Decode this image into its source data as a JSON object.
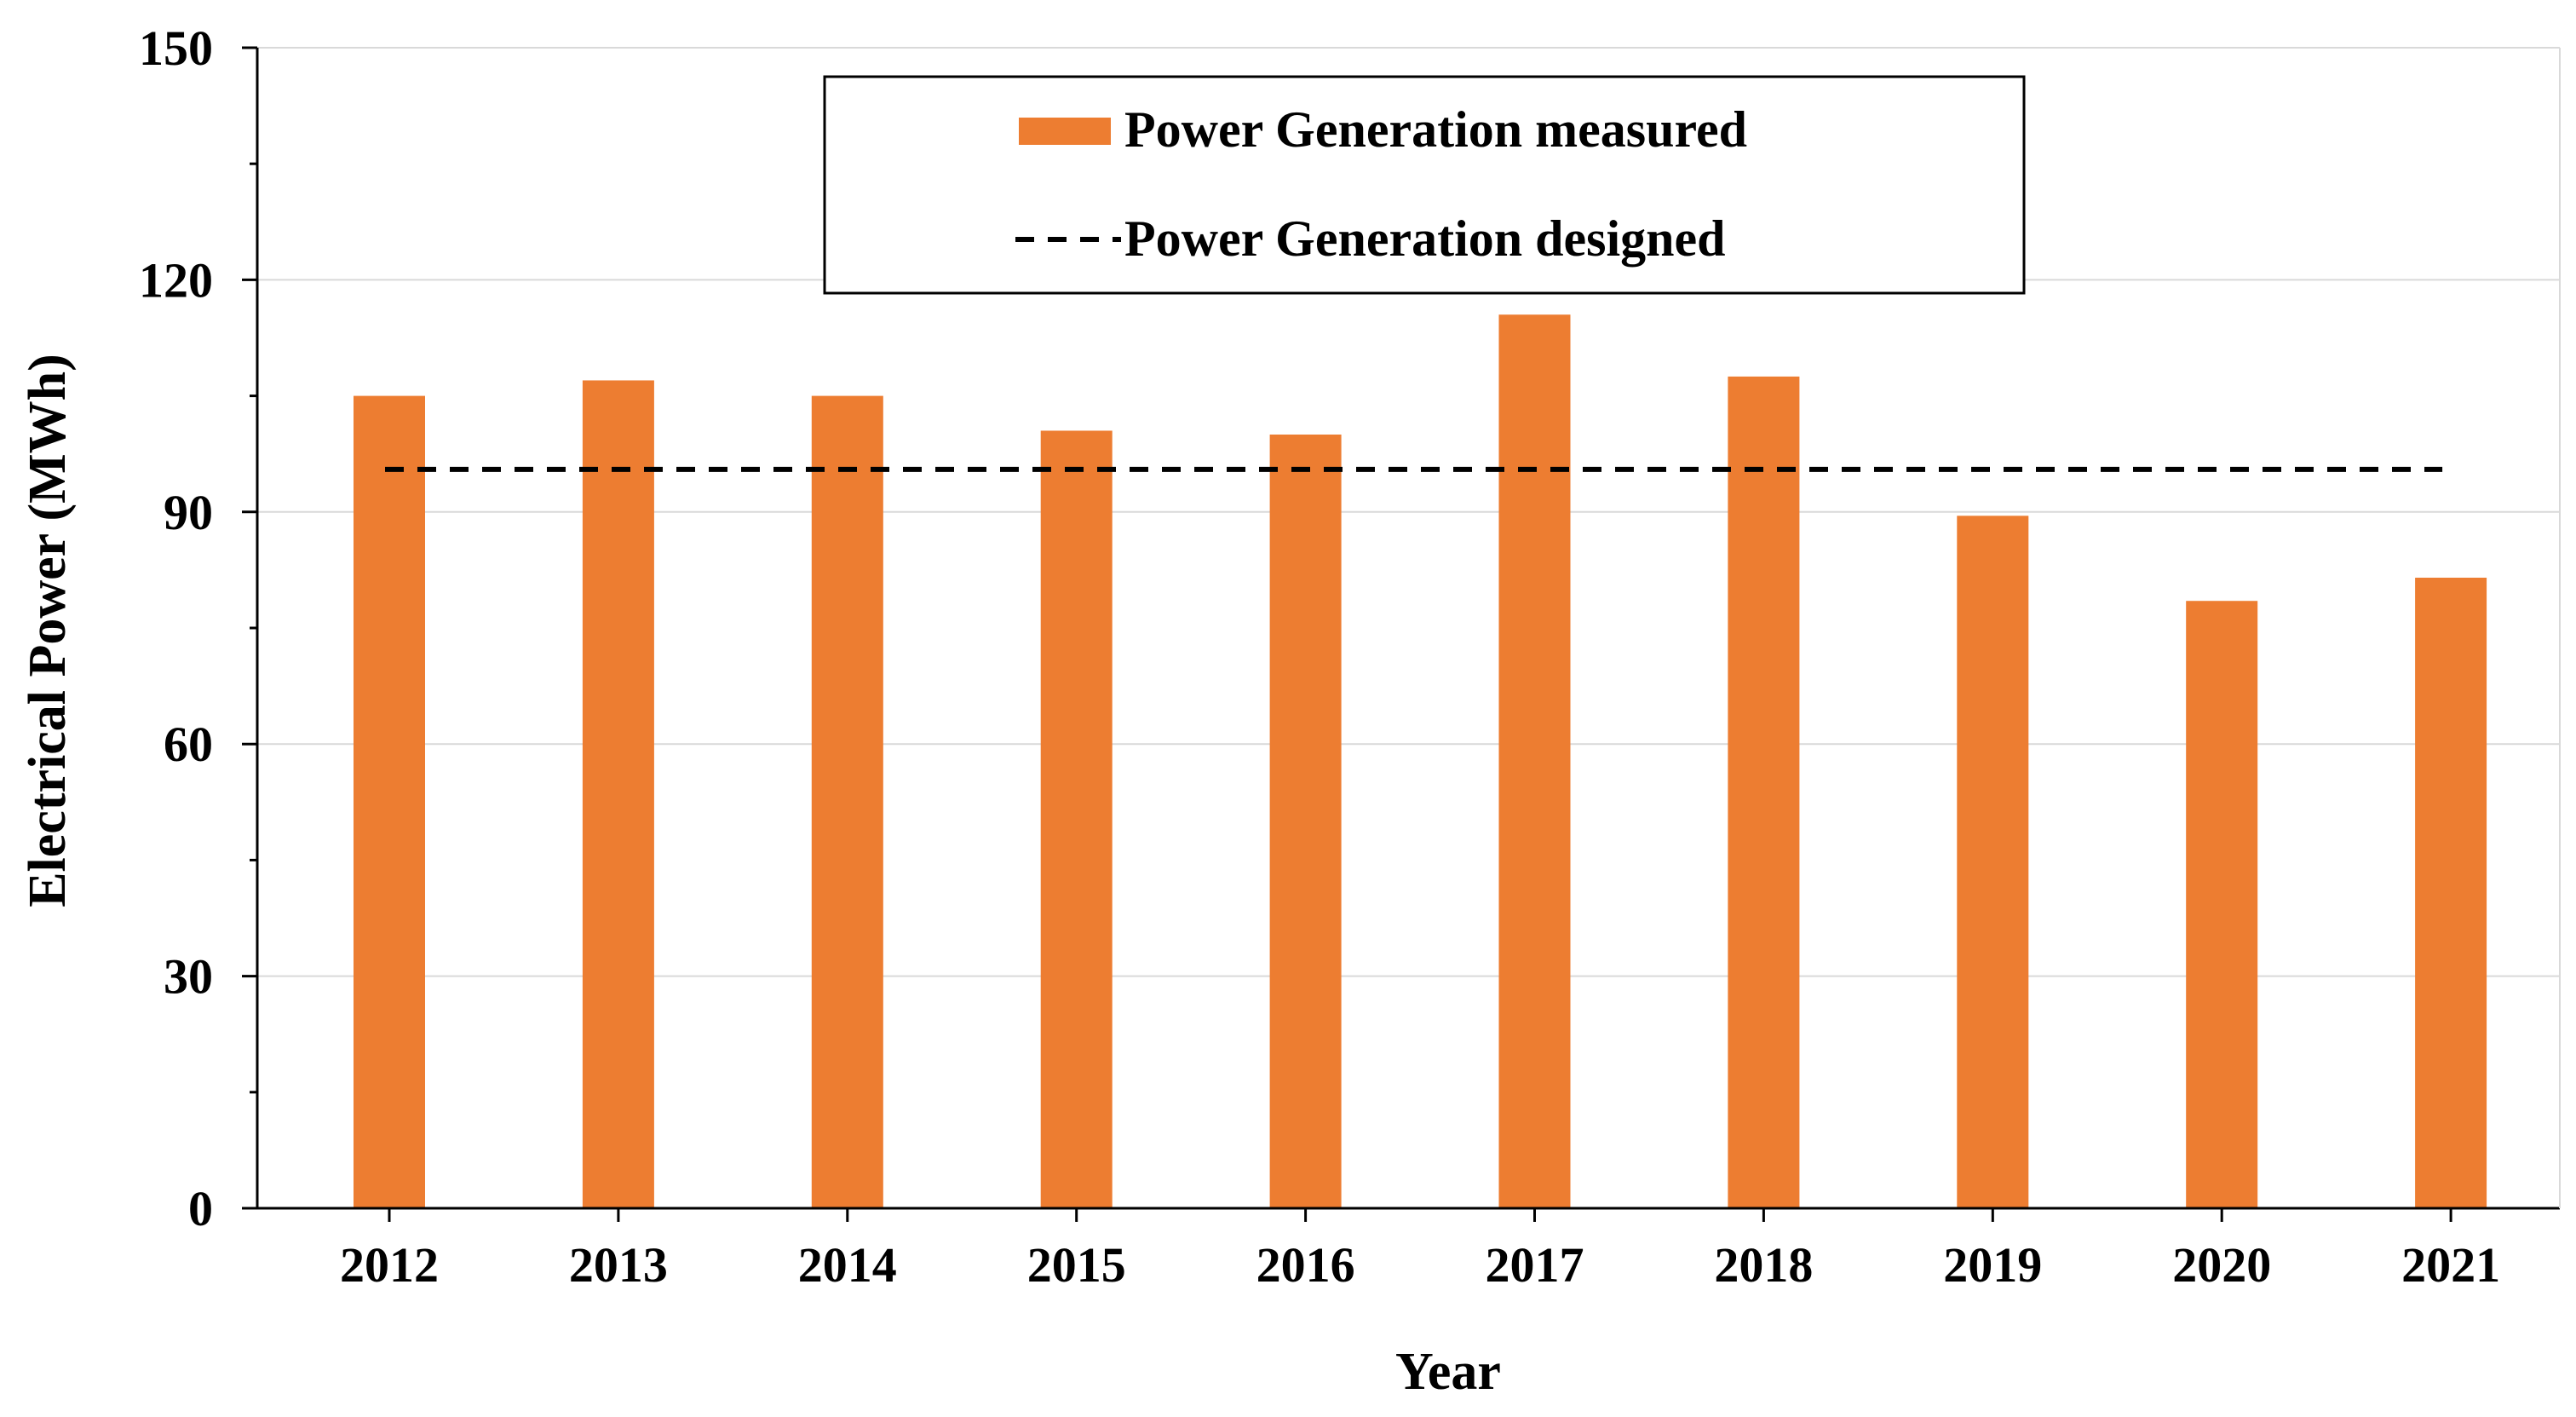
{
  "chart_data": {
    "type": "bar",
    "title": "",
    "xlabel": "Year",
    "ylabel": "Electrical Power (MWh)",
    "categories": [
      "2012",
      "2013",
      "2014",
      "2015",
      "2016",
      "2017",
      "2018",
      "2019",
      "2020",
      "2021"
    ],
    "series": [
      {
        "name": "Power Generation measured",
        "kind": "bar",
        "values": [
          105,
          107,
          105,
          100.5,
          100,
          115.5,
          107.5,
          89.5,
          78.5,
          81.5
        ]
      },
      {
        "name": "Power Generation designed",
        "kind": "dashed-line",
        "values": [
          95.5,
          95.5,
          95.5,
          95.5,
          95.5,
          95.5,
          95.5,
          95.5,
          95.5,
          95.5
        ]
      }
    ],
    "ylim": [
      0,
      150
    ],
    "yticks": [
      "0",
      "30",
      "60",
      "90",
      "120",
      "150"
    ],
    "grid": true,
    "legend_position": "top-center"
  },
  "colors": {
    "bar": "#ED7D31",
    "designed_line": "#000000",
    "grid": "#D9D9D9",
    "axis": "#000000"
  }
}
